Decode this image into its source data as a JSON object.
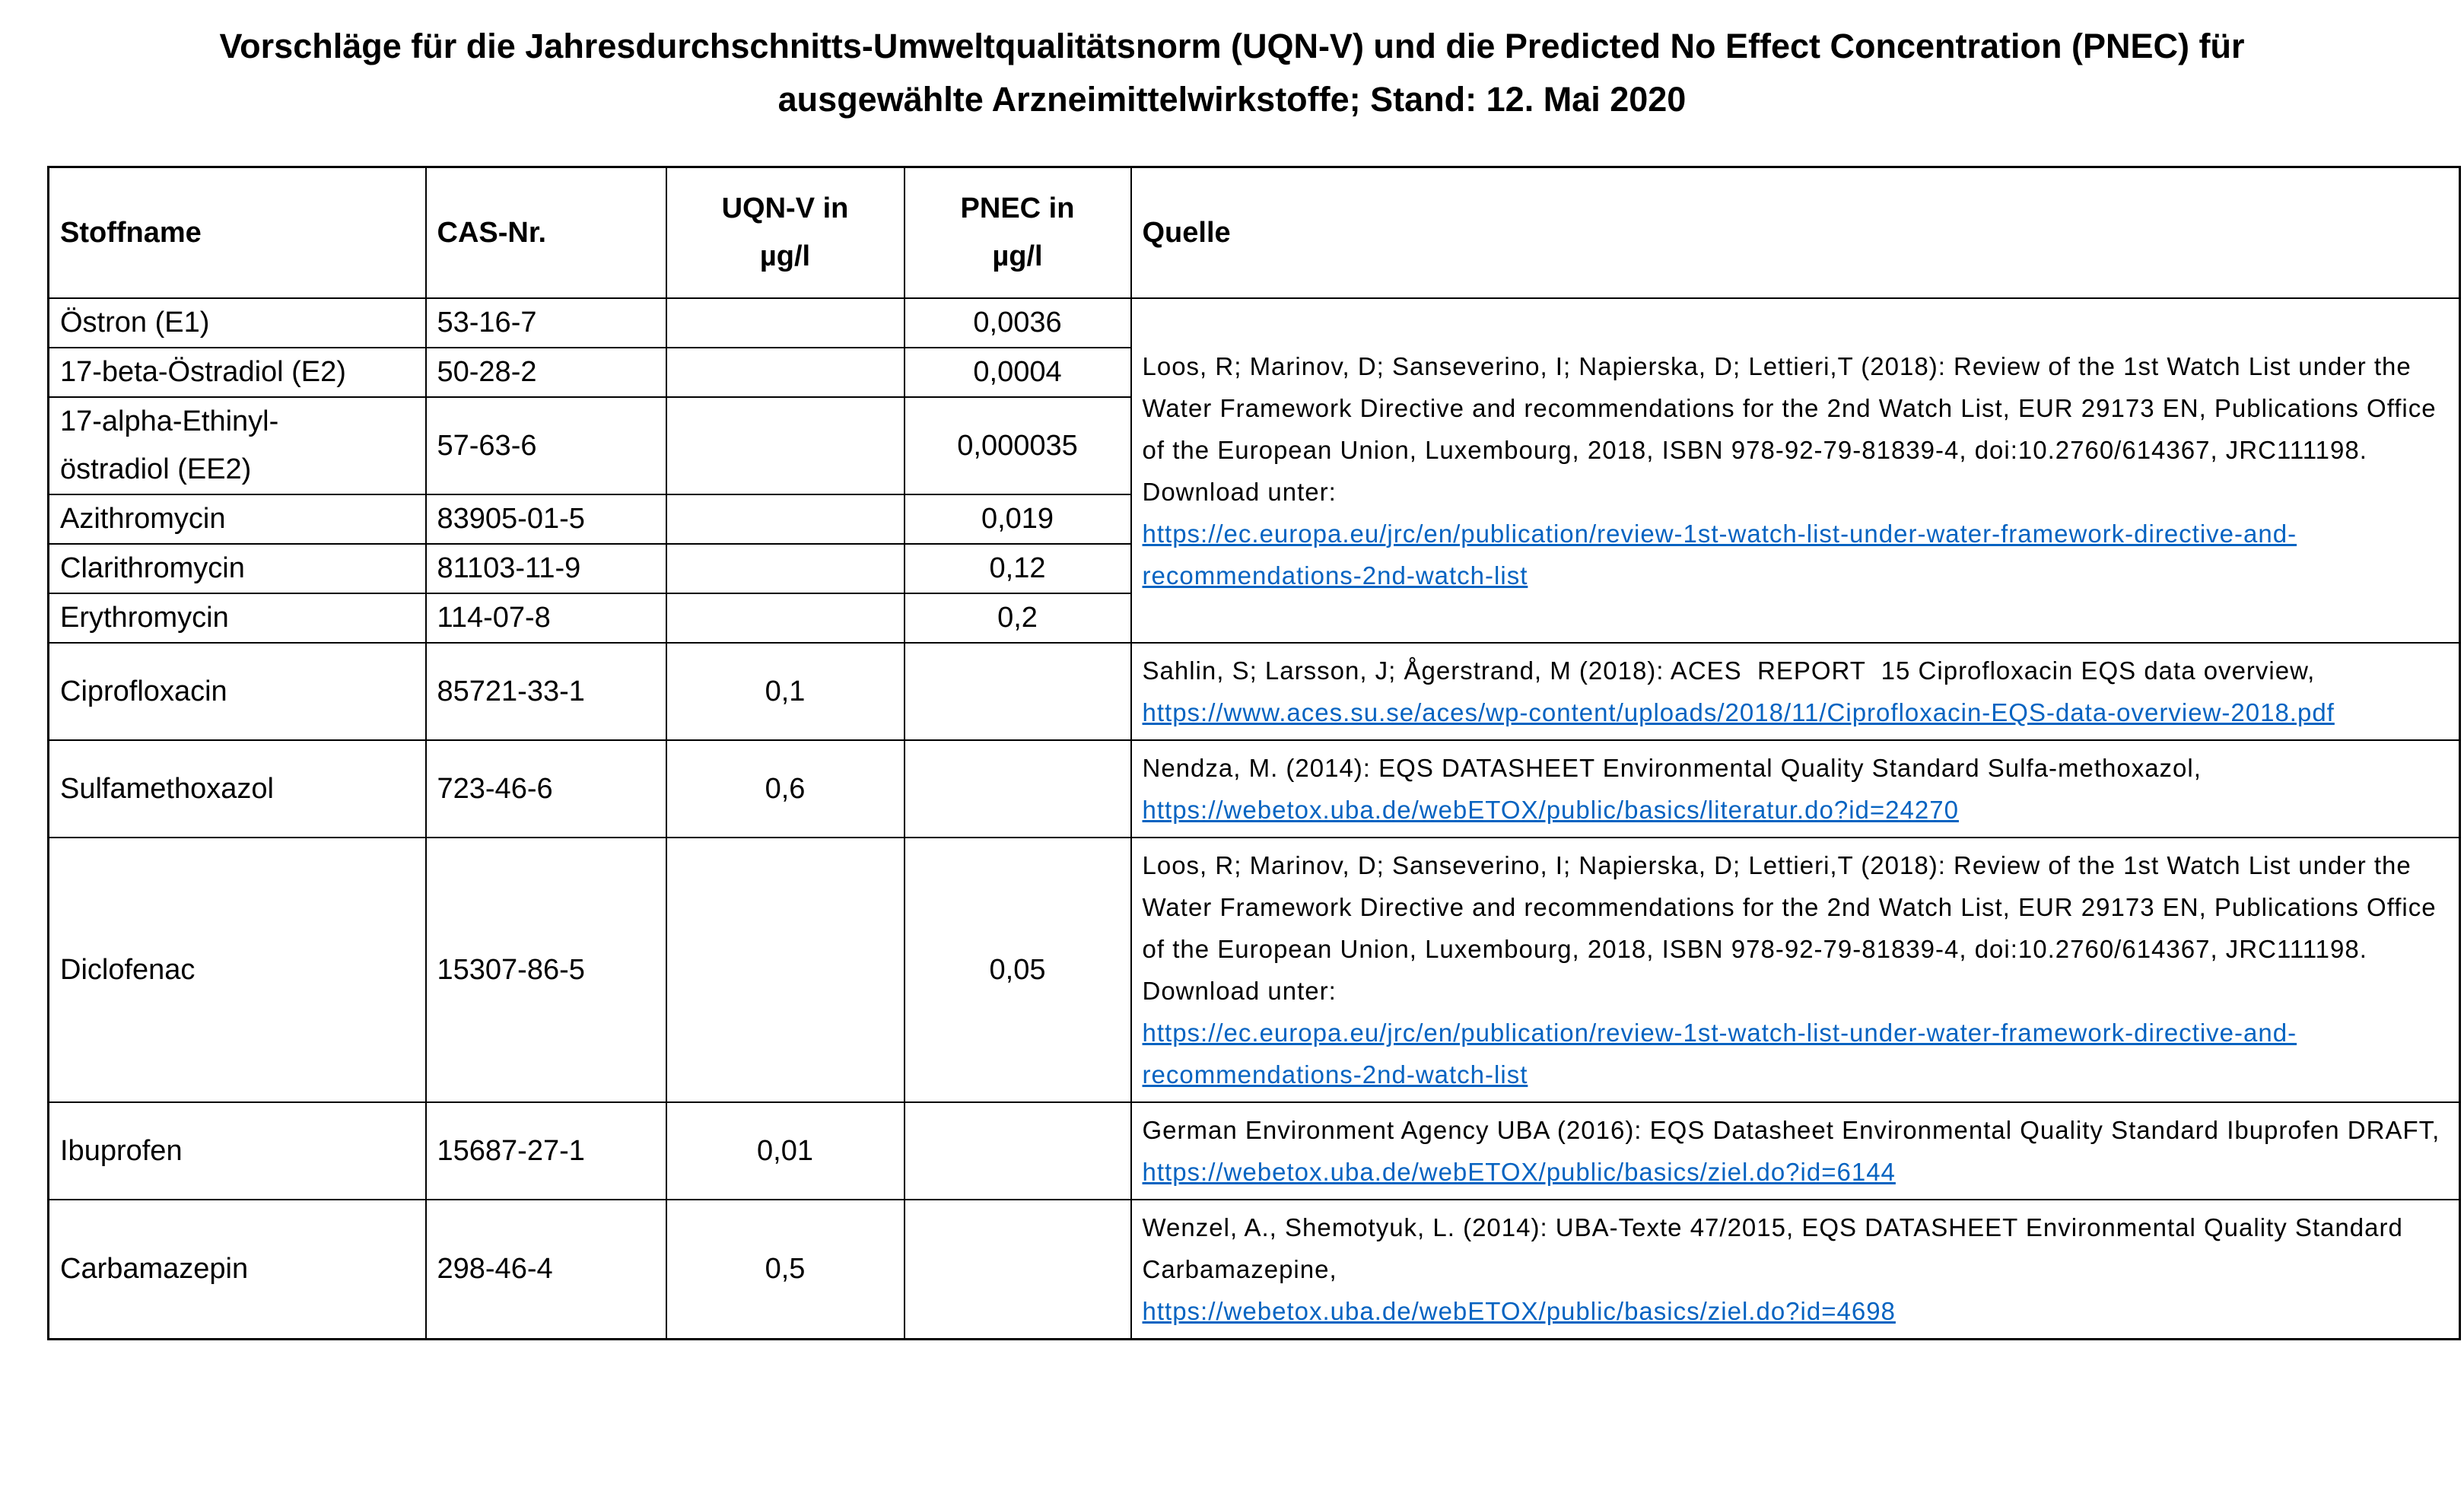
{
  "page": {
    "title_lines": [
      "Vorschläge für die Jahresdurchschnitts-Umweltqualitätsnorm (UQN-V) und die Predicted No Effect Concentration (PNEC) für",
      "ausgewählte Arzneimittelwirkstoffe; Stand: 12. Mai 2020"
    ]
  },
  "colors": {
    "link": "#0563c1",
    "border": "#000000",
    "text": "#000000",
    "page_background": "#ffffff"
  },
  "table": {
    "columns": [
      {
        "label": "Stoffname"
      },
      {
        "label": "CAS-Nr."
      },
      {
        "label": [
          "UQN-V in",
          "µg/l"
        ]
      },
      {
        "label": [
          "PNEC in",
          "µg/l"
        ]
      },
      {
        "label": "Quelle"
      }
    ],
    "rows": [
      {
        "name": "Östron (E1)",
        "cas": "53-16-7",
        "uqn": "",
        "pnec": "0,0036",
        "quelle": 0,
        "quelle_rowspan": 6
      },
      {
        "name": "17-beta-Östradiol (E2)",
        "cas": "50-28-2",
        "uqn": "",
        "pnec": "0,0004"
      },
      {
        "name": [
          "17-alpha-Ethinyl-",
          "östradiol (EE2)"
        ],
        "cas": "57-63-6",
        "uqn": "",
        "pnec": "0,000035"
      },
      {
        "name": "Azithromycin",
        "cas": "83905-01-5",
        "uqn": "",
        "pnec": "0,019"
      },
      {
        "name": "Clarithromycin",
        "cas": "81103-11-9",
        "uqn": "",
        "pnec": "0,12"
      },
      {
        "name": "Erythromycin",
        "cas": "114-07-8",
        "uqn": "",
        "pnec": "0,2"
      },
      {
        "name": "Ciprofloxacin",
        "cas": "85721-33-1",
        "uqn": "0,1",
        "pnec": "",
        "quelle": 1
      },
      {
        "name": "Sulfamethoxazol",
        "cas": "723-46-6",
        "uqn": "0,6",
        "pnec": "",
        "quelle": 2
      },
      {
        "name": "Diclofenac",
        "cas": "15307-86-5",
        "uqn": "",
        "pnec": "0,05",
        "quelle": 3
      },
      {
        "name": "Ibuprofen",
        "cas": "15687-27-1",
        "uqn": "0,01",
        "pnec": "",
        "quelle": 4
      },
      {
        "name": "Carbamazepin",
        "cas": "298-46-4",
        "uqn": "0,5",
        "pnec": "",
        "quelle": 5
      }
    ],
    "quellen": [
      [
        {
          "t": "Loos, R; Marinov, D; Sanseverino, I; Napierska, D; Lettieri,T (2018): Review of the 1st Watch List under the Water Framework Directive and recommendations for the 2nd Watch List, EUR 29173 EN, Publications Office of the European Union, Luxembourg, 2018, ISBN 978-92-79-81839-4, doi:10.2760/614367, JRC111198. Download unter:\n"
        },
        {
          "t": "https://ec.europa.eu/jrc/en/publication/review-1st-watch-list-under-water-framework-directive-and-recommendations-2nd-watch-list",
          "link": true
        }
      ],
      [
        {
          "t": "Sahlin, S; Larsson, J; Ågerstrand, M (2018): ACES  REPORT  15 Ciprofloxacin EQS data overview, "
        },
        {
          "t": "https://www.aces.su.se/aces/wp-content/uploads/2018/11/Ciprofloxacin-EQS-data-overview-2018.pdf",
          "link": true
        }
      ],
      [
        {
          "t": "Nendza, M. (2014): EQS DATASHEET Environmental Quality Standard Sulfa-methoxazol, "
        },
        {
          "t": "https://webetox.uba.de/webETOX/public/basics/literatur.do?id=24270",
          "link": true
        }
      ],
      [
        {
          "t": "Loos, R; Marinov, D; Sanseverino, I; Napierska, D; Lettieri,T (2018): Review of the 1st Watch List under the Water Framework Directive and recommendations for the 2nd Watch List, EUR 29173 EN, Publications Office of the European Union, Luxembourg, 2018, ISBN 978-92-79-81839-4, doi:10.2760/614367, JRC111198. Download unter:\n"
        },
        {
          "t": "https://ec.europa.eu/jrc/en/publication/review-1st-watch-list-under-water-framework-directive-and-recommendations-2nd-watch-list",
          "link": true
        }
      ],
      [
        {
          "t": "German Environment Agency UBA (2016): EQS Datasheet Environmental Quality Standard Ibuprofen DRAFT, "
        },
        {
          "t": "https://webetox.uba.de/webETOX/public/basics/ziel.do?id=6144",
          "link": true
        }
      ],
      [
        {
          "t": "Wenzel, A., Shemotyuk, L. (2014): UBA-Texte 47/2015, EQS DATASHEET Environmental Quality Standard Carbamazepine,\n"
        },
        {
          "t": "https://webetox.uba.de/webETOX/public/basics/ziel.do?id=4698",
          "link": true
        }
      ]
    ]
  }
}
